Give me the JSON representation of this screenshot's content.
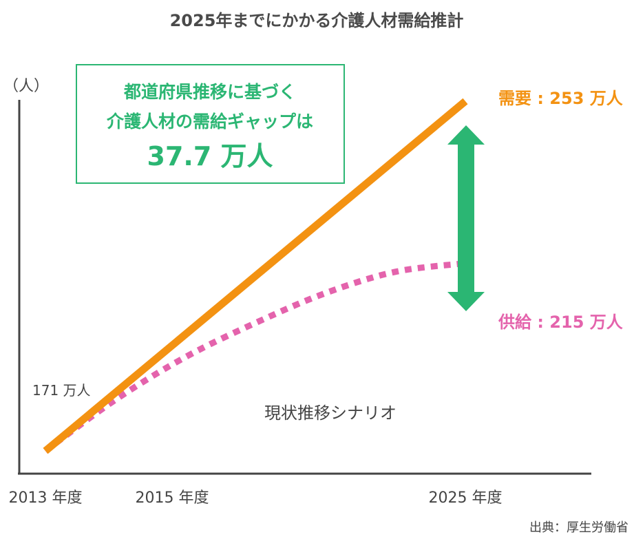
{
  "chart_data": {
    "type": "line",
    "title": "2025年までにかかる介護人材需給推計",
    "ylabel": "（人）",
    "x_ticks": [
      "2013 年度",
      "2015 年度",
      "2025 年度"
    ],
    "x_years": [
      2013,
      2015,
      2025
    ],
    "start_label": "171 万人",
    "series": [
      {
        "name": "需要",
        "style": "solid",
        "color": "#f39212",
        "x": [
          2013,
          2025
        ],
        "y": [
          171,
          253
        ],
        "end_label": "需要 : 253 万人"
      },
      {
        "name": "供給",
        "style": "dotted",
        "color": "#e463ac",
        "x": [
          2013,
          2015,
          2017,
          2019,
          2021,
          2023,
          2025
        ],
        "y": [
          171,
          183,
          193,
          201,
          208,
          213,
          215
        ],
        "end_label": "供給 : 215 万人"
      }
    ],
    "gap_arrow_color": "#2bb673",
    "scenario_label": "現状推移シナリオ",
    "source": "出典：厚生労働省"
  },
  "callout": {
    "line1": "都道府県推移に基づく",
    "line2": "介護人材の需給ギャップは",
    "value": "37.7 万人",
    "color": "#2bb673"
  }
}
